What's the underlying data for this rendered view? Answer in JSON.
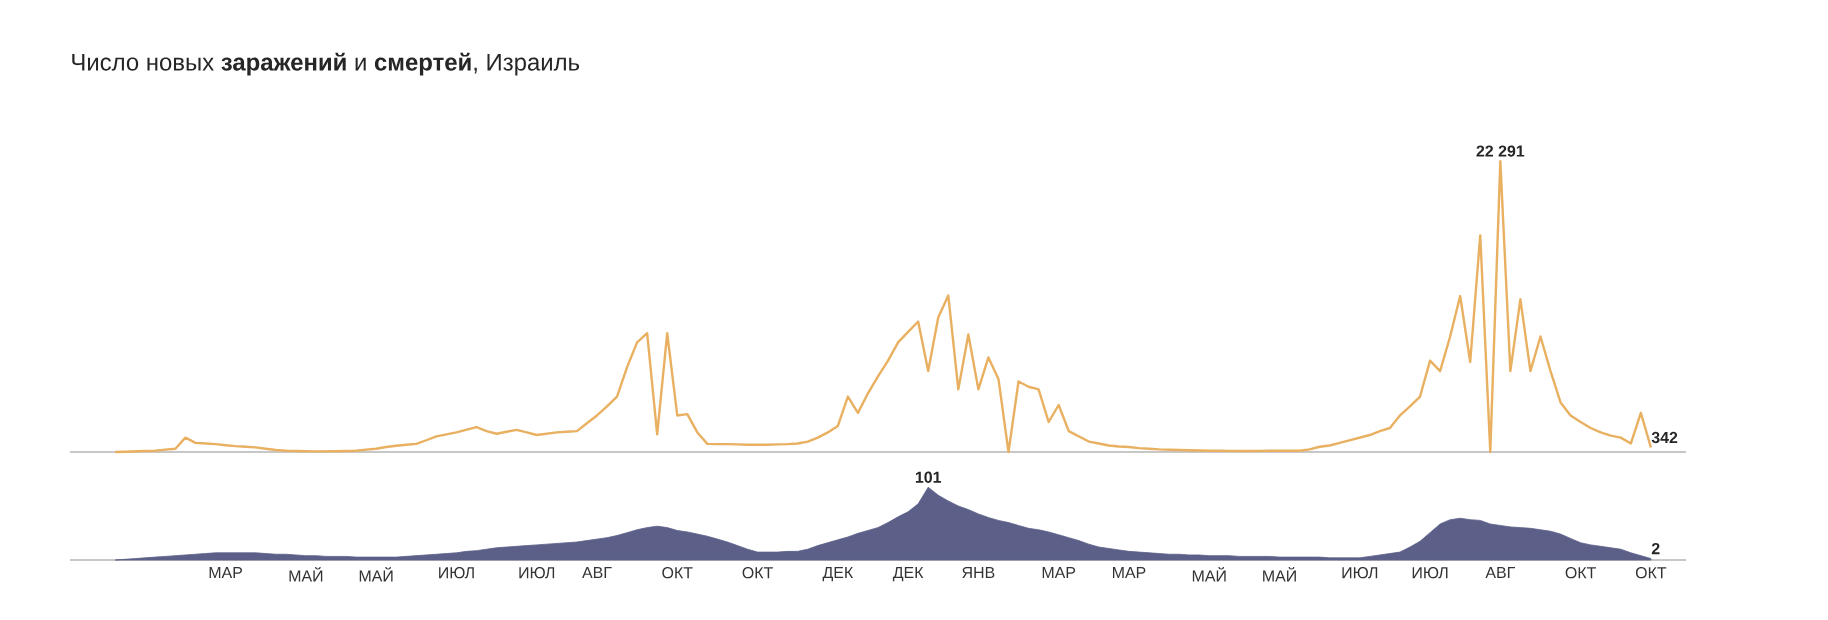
{
  "chart_data": [
    {
      "type": "line",
      "title": "Число новых **заражений** и **смертей**, Израиль",
      "color": "#e8b060",
      "tick_labels": false,
      "categories": [
        null,
        null,
        null,
        null,
        null,
        null,
        null,
        null,
        null,
        null,
        null,
        null,
        null,
        null,
        null,
        null,
        null,
        null,
        null,
        null,
        null,
        null,
        null,
        null,
        null,
        null,
        null,
        null,
        null,
        null,
        null,
        null,
        null,
        null,
        null,
        null,
        null,
        null,
        null,
        null,
        null,
        null,
        null,
        null,
        null,
        null,
        null,
        null,
        null,
        null,
        null,
        null,
        null,
        null,
        null,
        null,
        null,
        null,
        null,
        null,
        null,
        null,
        null,
        null,
        null,
        null,
        null,
        null,
        null,
        null,
        null,
        null,
        null,
        null,
        null,
        null,
        null,
        null,
        null,
        null,
        null,
        null,
        null,
        null,
        null,
        null,
        null,
        null,
        null,
        null,
        null,
        null,
        null,
        null,
        null,
        null,
        null,
        null,
        null,
        null,
        null,
        null,
        null,
        null,
        null,
        null,
        null,
        null,
        null,
        null,
        null,
        null,
        null,
        null,
        null,
        null,
        null,
        null,
        null,
        null,
        null,
        null,
        null,
        null,
        null,
        null,
        null,
        null,
        null,
        null,
        null,
        null,
        null,
        null,
        null,
        null,
        null,
        null,
        null,
        null,
        null,
        null,
        null,
        null,
        null,
        null,
        null,
        null,
        null,
        null,
        null,
        null,
        null,
        null,
        null,
        null,
        null,
        null,
        null,
        null,
        null
      ],
      "values": [
        null,
        null,
        null,
        null,
        0,
        20,
        50,
        80,
        100,
        180,
        250,
        1100,
        700,
        650,
        600,
        520,
        450,
        400,
        350,
        250,
        150,
        100,
        80,
        60,
        50,
        55,
        60,
        80,
        100,
        180,
        250,
        380,
        480,
        560,
        620,
        900,
        1200,
        1350,
        1500,
        1700,
        1900,
        1600,
        1400,
        1550,
        1700,
        1500,
        1300,
        1400,
        1500,
        1550,
        1600,
        2200,
        2800,
        3500,
        4250,
        6500,
        8400,
        9100,
        1350,
        9100,
        2800,
        2900,
        1500,
        620,
        600,
        600,
        580,
        560,
        550,
        560,
        580,
        600,
        650,
        800,
        1100,
        1500,
        2000,
        4250,
        3000,
        4500,
        5800,
        7000,
        8400,
        9200,
        10000,
        6200,
        10300,
        12000,
        4800,
        9000,
        4800,
        7250,
        5600,
        0,
        5400,
        5000,
        4800,
        2300,
        3600,
        1600,
        1200,
        800,
        650,
        500,
        420,
        380,
        300,
        250,
        200,
        170,
        150,
        130,
        110,
        100,
        90,
        85,
        80,
        80,
        85,
        90,
        95,
        100,
        100,
        200,
        400,
        500,
        700,
        900,
        1100,
        1300,
        1600,
        1840,
        2800,
        3500,
        4250,
        7000,
        6200,
        8850,
        11950,
        6900,
        16600,
        0,
        22291,
        6200,
        11700,
        6200,
        8850,
        6200,
        3800,
        2800,
        2300,
        1840,
        1500,
        1250,
        1100,
        650,
        3000,
        342,
        null,
        null,
        null
      ],
      "value_labels": [
        null,
        null,
        null,
        null,
        null,
        null,
        null,
        null,
        null,
        null,
        null,
        null,
        null,
        null,
        null,
        null,
        null,
        null,
        null,
        null,
        null,
        null,
        null,
        null,
        null,
        null,
        null,
        null,
        null,
        null,
        null,
        null,
        null,
        null,
        null,
        null,
        null,
        null,
        null,
        null,
        null,
        null,
        null,
        null,
        null,
        null,
        null,
        null,
        null,
        null,
        null,
        null,
        null,
        null,
        null,
        null,
        null,
        null,
        null,
        null,
        null,
        null,
        null,
        null,
        null,
        null,
        null,
        null,
        null,
        null,
        null,
        null,
        null,
        null,
        null,
        null,
        null,
        null,
        null,
        null,
        null,
        null,
        null,
        null,
        null,
        null,
        null,
        null,
        null,
        null,
        null,
        null,
        null,
        null,
        null,
        null,
        null,
        null,
        null,
        null,
        null,
        null,
        null,
        null,
        null,
        null,
        null,
        null,
        null,
        null,
        null,
        null,
        null,
        null,
        null,
        null,
        null,
        null,
        null,
        null,
        null,
        null,
        null,
        null,
        null,
        null,
        null,
        null,
        null,
        null,
        null,
        null,
        null,
        null,
        null,
        null,
        null,
        null,
        null,
        null,
        null,
        null,
        "22 291",
        null,
        null,
        null,
        null,
        null,
        null,
        null,
        null,
        null,
        null,
        null,
        null,
        null,
        null,
        "342",
        null,
        null,
        null
      ]
    },
    {
      "type": "area",
      "color": "#5c6088",
      "tick_labels": "x",
      "categories": [
        null,
        null,
        null,
        null,
        null,
        null,
        null,
        null,
        null,
        null,
        null,
        null,
        null,
        null,
        null,
        "МАР",
        null,
        null,
        null,
        null,
        null,
        null,
        null,
        "МАЙ",
        null,
        null,
        null,
        null,
        null,
        null,
        "МАЙ",
        null,
        null,
        null,
        null,
        null,
        null,
        null,
        "ИЮЛ",
        null,
        null,
        null,
        null,
        null,
        null,
        null,
        "ИЮЛ",
        null,
        null,
        null,
        null,
        null,
        "АВГ",
        null,
        null,
        null,
        null,
        null,
        null,
        null,
        "ОКТ",
        null,
        null,
        null,
        null,
        null,
        null,
        null,
        "ОКТ",
        null,
        null,
        null,
        null,
        null,
        null,
        null,
        "ДЕК",
        null,
        null,
        null,
        null,
        null,
        null,
        "ДЕК",
        null,
        null,
        null,
        null,
        null,
        null,
        "ЯНВ",
        null,
        null,
        null,
        null,
        null,
        null,
        null,
        "МАР",
        null,
        null,
        null,
        null,
        null,
        null,
        "МАР",
        null,
        null,
        null,
        null,
        null,
        null,
        null,
        "МАЙ",
        null,
        null,
        null,
        null,
        null,
        null,
        "МАЙ",
        null,
        null,
        null,
        null,
        null,
        null,
        null,
        "ИЮЛ",
        null,
        null,
        null,
        null,
        null,
        null,
        "ИЮЛ",
        null,
        null,
        null,
        null,
        null,
        null,
        "АВГ",
        null,
        null,
        null,
        null,
        null,
        null,
        null,
        "ОКТ",
        null,
        null,
        null,
        null,
        null,
        null,
        "ОКТ",
        null,
        null,
        null
      ],
      "values": [
        null,
        null,
        null,
        null,
        0,
        1,
        2,
        3,
        4,
        5,
        6,
        7,
        8,
        9,
        10,
        10,
        10,
        10,
        10,
        9,
        8,
        8,
        7,
        6,
        6,
        5,
        5,
        5,
        4,
        4,
        4,
        4,
        4,
        5,
        6,
        7,
        8,
        9,
        10,
        12,
        13,
        15,
        17,
        18,
        19,
        20,
        21,
        22,
        23,
        24,
        25,
        27,
        29,
        31,
        34,
        38,
        42,
        45,
        47,
        45,
        41,
        39,
        36,
        33,
        29,
        25,
        20,
        15,
        11,
        11,
        11,
        12,
        12,
        15,
        20,
        24,
        28,
        32,
        37,
        41,
        45,
        52,
        60,
        67,
        78,
        101,
        90,
        82,
        75,
        70,
        64,
        59,
        55,
        52,
        48,
        44,
        42,
        39,
        35,
        31,
        27,
        22,
        18,
        16,
        14,
        12,
        11,
        10,
        9,
        8,
        8,
        7,
        7,
        6,
        6,
        6,
        5,
        5,
        5,
        5,
        4,
        4,
        4,
        4,
        4,
        3,
        3,
        3,
        3,
        5,
        7,
        9,
        11,
        18,
        26,
        38,
        50,
        56,
        58,
        56,
        55,
        50,
        48,
        46,
        45,
        44,
        42,
        40,
        36,
        30,
        24,
        21,
        19,
        17,
        15,
        10,
        6,
        2,
        null,
        null,
        null
      ],
      "value_labels": [
        null,
        null,
        null,
        null,
        null,
        null,
        null,
        null,
        null,
        null,
        null,
        null,
        null,
        null,
        null,
        null,
        null,
        null,
        null,
        null,
        null,
        null,
        null,
        null,
        null,
        null,
        null,
        null,
        null,
        null,
        null,
        null,
        null,
        null,
        null,
        null,
        null,
        null,
        null,
        null,
        null,
        null,
        null,
        null,
        null,
        null,
        null,
        null,
        null,
        null,
        null,
        null,
        null,
        null,
        null,
        null,
        null,
        null,
        null,
        null,
        null,
        null,
        null,
        null,
        null,
        null,
        null,
        null,
        null,
        null,
        null,
        null,
        null,
        null,
        null,
        null,
        null,
        null,
        null,
        null,
        null,
        null,
        null,
        null,
        null,
        "101",
        null,
        null,
        null,
        null,
        null,
        null,
        null,
        null,
        null,
        null,
        null,
        null,
        null,
        null,
        null,
        null,
        null,
        null,
        null,
        null,
        null,
        null,
        null,
        null,
        null,
        null,
        null,
        null,
        null,
        null,
        null,
        null,
        null,
        null,
        null,
        null,
        null,
        null,
        null,
        null,
        null,
        null,
        null,
        null,
        null,
        null,
        null,
        null,
        null,
        null,
        null,
        null,
        null,
        null,
        null,
        null,
        null,
        null,
        null,
        null,
        null,
        null,
        null,
        null,
        null,
        null,
        null,
        null,
        null,
        null,
        null,
        "2",
        null,
        null,
        null
      ]
    }
  ]
}
